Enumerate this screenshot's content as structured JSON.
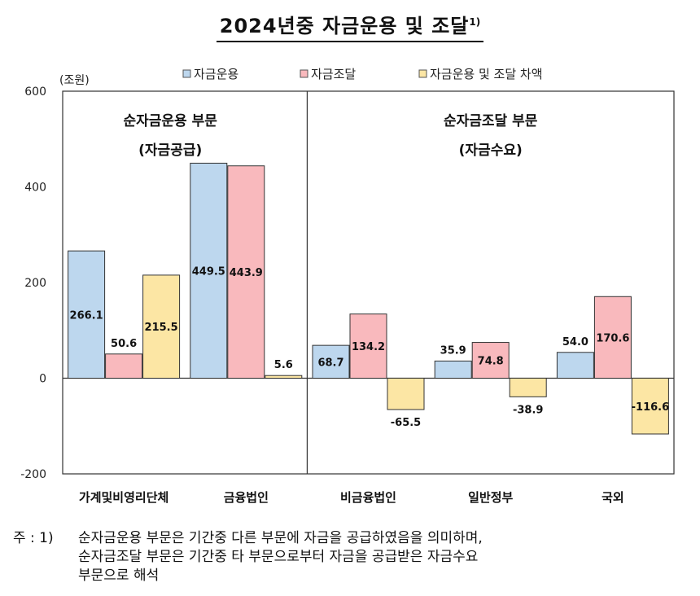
{
  "title": "2024년중 자금운용 및 조달",
  "title_sup": "1)",
  "unit": "(조원)",
  "chart_data": {
    "type": "bar",
    "ylim": [
      -200,
      600
    ],
    "yticks": [
      600,
      400,
      200,
      0,
      -200
    ],
    "categories": [
      "가계및비영리단체",
      "금융법인",
      "비금융법인",
      "일반정부",
      "국외"
    ],
    "series": [
      {
        "name": "자금운용",
        "color": "#bdd7ee",
        "values": [
          266.1,
          449.5,
          68.7,
          35.9,
          54.0
        ],
        "labels": [
          "266.1",
          "449.5",
          "68.7",
          "35.9",
          "54.0"
        ]
      },
      {
        "name": "자금조달",
        "color": "#f9b9bd",
        "values": [
          50.6,
          443.9,
          134.2,
          74.8,
          170.6
        ],
        "labels": [
          "50.6",
          "443.9",
          "134.2",
          "74.8",
          "170.6"
        ]
      },
      {
        "name": "자금운용 및 조달 차액",
        "color": "#fce6a4",
        "values": [
          215.5,
          5.6,
          -65.5,
          -38.9,
          -116.6
        ],
        "labels": [
          "215.5",
          "5.6",
          "-65.5",
          "-38.9",
          "-116.6"
        ]
      }
    ],
    "annotations": [
      {
        "line1": "순자금운용 부문",
        "line2": "(자금공급)"
      },
      {
        "line1": "순자금조달 부문",
        "line2": "(자금수요)"
      }
    ],
    "legend_position": "top"
  },
  "note": {
    "prefix": "주 : 1)",
    "lines": [
      "순자금운용 부문은 기간중 다른 부문에 자금을 공급하였음을 의미하며,",
      "순자금조달 부문은 기간중 타 부문으로부터 자금을 공급받은 자금수요",
      "부문으로 해석"
    ]
  }
}
